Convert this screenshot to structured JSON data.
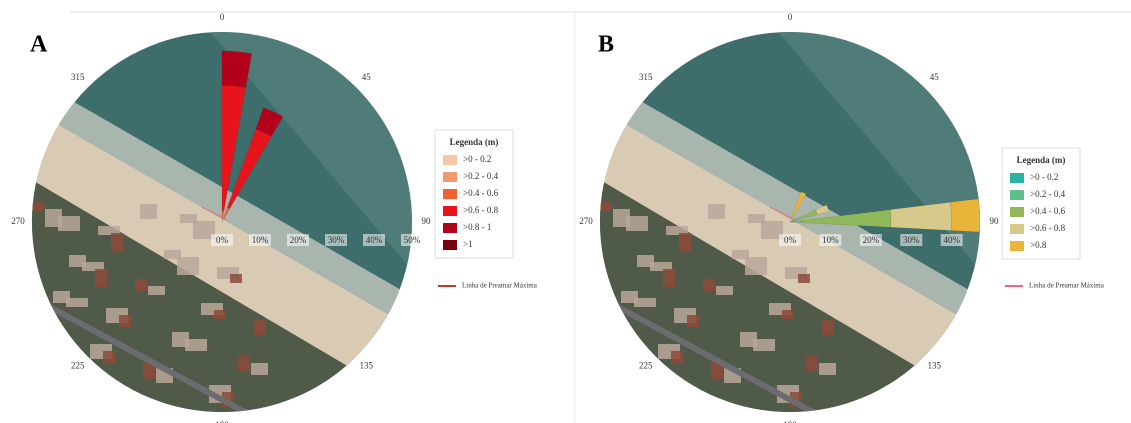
{
  "chart_data": [
    {
      "type": "rose",
      "panel_label": "A",
      "direction_ticks": [
        0,
        45,
        90,
        135,
        180,
        225,
        270,
        315
      ],
      "directions": [
        5,
        25
      ],
      "rlim": [
        0,
        50
      ],
      "rticks": [
        {
          "value": 0,
          "label": "0%"
        },
        {
          "value": 10,
          "label": "10%"
        },
        {
          "value": 20,
          "label": "20%"
        },
        {
          "value": 30,
          "label": "30%"
        },
        {
          "value": 40,
          "label": "40%"
        },
        {
          "value": 50,
          "label": "50%"
        }
      ],
      "legend_title": "Legenda (m)",
      "series": [
        {
          "name": ">0 - 0.2",
          "color": "#f4c7a8",
          "values": [
            1,
            1
          ]
        },
        {
          "name": ">0.2 - 0.4",
          "color": "#f29a6b",
          "values": [
            null,
            null
          ]
        },
        {
          "name": ">0.4 - 0.6",
          "color": "#f0622f",
          "values": [
            2,
            3
          ]
        },
        {
          "name": ">0.6 - 0.8",
          "color": "#e8141c",
          "values": [
            33,
            22
          ]
        },
        {
          "name": ">0.8 - 1",
          "color": "#b3001b",
          "values": [
            9,
            6
          ]
        },
        {
          "name": ">1",
          "color": "#7a0010",
          "values": [
            null,
            null
          ]
        }
      ],
      "line_legend": {
        "name": "Linha de Preamar Máxima",
        "color": "#c0392b"
      }
    },
    {
      "type": "rose",
      "panel_label": "B",
      "direction_ticks": [
        0,
        45,
        90,
        135,
        180,
        225,
        270,
        315
      ],
      "directions": [
        25,
        70,
        88
      ],
      "rlim": [
        0,
        47
      ],
      "rticks": [
        {
          "value": 0,
          "label": "0%"
        },
        {
          "value": 10,
          "label": "10%"
        },
        {
          "value": 20,
          "label": "20%"
        },
        {
          "value": 30,
          "label": "30%"
        },
        {
          "value": 40,
          "label": "40%"
        }
      ],
      "legend_title": "Legenda (m)",
      "series": [
        {
          "name": ">0 - 0.2",
          "color": "#2bb3a3",
          "values": [
            null,
            1,
            1
          ]
        },
        {
          "name": ">0.2 - 0.4",
          "color": "#5fbf8a",
          "values": [
            null,
            1,
            2
          ]
        },
        {
          "name": ">0.4 - 0.6",
          "color": "#8fb85a",
          "values": [
            null,
            5,
            22
          ]
        },
        {
          "name": ">0.6 - 0.8",
          "color": "#d6c98a",
          "values": [
            null,
            3,
            15
          ]
        },
        {
          "name": ">0.8",
          "color": "#e8b53a",
          "values": [
            8,
            null,
            7
          ]
        }
      ],
      "line_legend": {
        "name": "Linha de Preamar Máxima",
        "color": "#f06292"
      }
    }
  ]
}
